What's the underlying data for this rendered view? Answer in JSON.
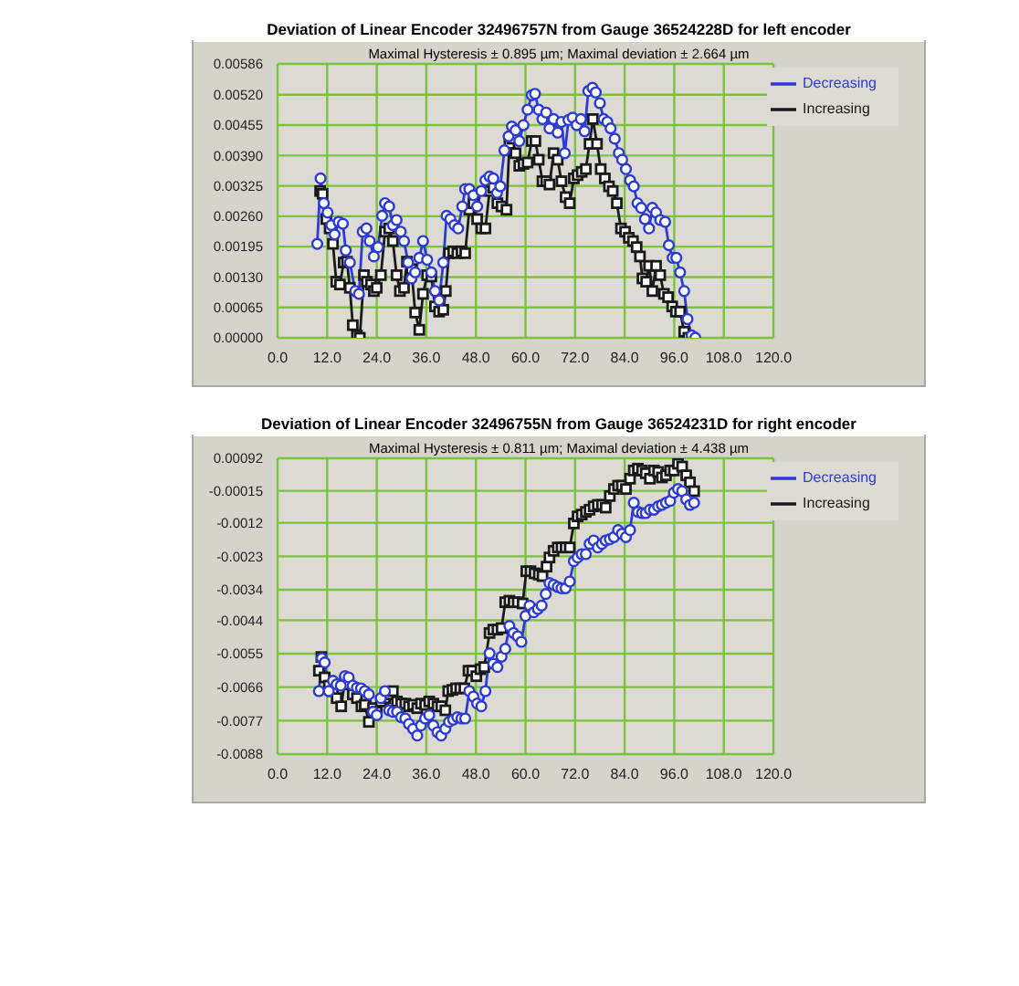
{
  "chart_data": [
    {
      "type": "line",
      "title": "Deviation of Linear Encoder 32496757N from Gauge 36524228D for left encoder",
      "subtitle": "Maximal Hysteresis ± 0.895 µm; Maximal deviation ± 2.664 µm",
      "xlim": [
        0,
        120
      ],
      "xticks": [
        {
          "value": 0,
          "label": "0.0"
        },
        {
          "value": 12,
          "label": "12.0"
        },
        {
          "value": 24,
          "label": "24.0"
        },
        {
          "value": 36,
          "label": "36.0"
        },
        {
          "value": 48,
          "label": "48.0"
        },
        {
          "value": 60,
          "label": "60.0"
        },
        {
          "value": 72,
          "label": "72.0"
        },
        {
          "value": 84,
          "label": "84.0"
        },
        {
          "value": 96,
          "label": "96.0"
        },
        {
          "value": 108,
          "label": "108.0"
        },
        {
          "value": 120,
          "label": "120.0"
        }
      ],
      "ylim": [
        0,
        0.00586
      ],
      "yticks": [
        {
          "value": 0,
          "label": "0.00000"
        },
        {
          "value": 0.00065,
          "label": "0.00065"
        },
        {
          "value": 0.0013,
          "label": "0.00130"
        },
        {
          "value": 0.00195,
          "label": "0.00195"
        },
        {
          "value": 0.0026,
          "label": "0.00260"
        },
        {
          "value": 0.00325,
          "label": "0.00325"
        },
        {
          "value": 0.0039,
          "label": "0.00390"
        },
        {
          "value": 0.00455,
          "label": "0.00455"
        },
        {
          "value": 0.0052,
          "label": "0.00520"
        },
        {
          "value": 0.00586,
          "label": "0.00586"
        }
      ],
      "grid": true,
      "legend": "top right",
      "series": [
        {
          "name": "Increasing",
          "color": "#1a1a1a",
          "marker": "square",
          "x": [
            10.3,
            10.9,
            11.8,
            12.6,
            13.4,
            14.2,
            15.1,
            16.0,
            16.8,
            17.5,
            18.2,
            19.2,
            19.9,
            20.9,
            21.6,
            22.6,
            23.3,
            24.0,
            25.0,
            26.0,
            27.0,
            27.9,
            28.8,
            29.6,
            30.6,
            31.3,
            32.4,
            33.3,
            34.3,
            35.2,
            36.2,
            37.2,
            38.1,
            39.1,
            40.1,
            40.7,
            41.5,
            42.5,
            43.5,
            44.5,
            45.4,
            46.4,
            47.4,
            48.3,
            49.3,
            50.3,
            51.3,
            52.2,
            53.2,
            54.2,
            55.4,
            56.1,
            56.8,
            57.6,
            58.5,
            59.5,
            60.5,
            61.5,
            62.4,
            63.2,
            64.1,
            65.0,
            65.8,
            66.8,
            67.8,
            68.7,
            69.7,
            70.7,
            71.7,
            72.6,
            73.6,
            74.6,
            75.5,
            76.3,
            77.3,
            78.2,
            79.2,
            80.2,
            81.1,
            82.1,
            83.1,
            84.1,
            85.0,
            86.0,
            86.9,
            87.7,
            88.3,
            89.2,
            89.9,
            90.7,
            91.6,
            92.6,
            93.5,
            94.5,
            95.5,
            96.4,
            97.4,
            98.4,
            99.4,
            100.2
          ],
          "values": [
            0.00314,
            0.00308,
            0.00254,
            0.00234,
            0.00201,
            0.0012,
            0.00114,
            0.00161,
            0.00163,
            0.00107,
            0.00027,
            5e-05,
            0.0,
            0.00134,
            0.0012,
            0.00114,
            0.001,
            0.00107,
            0.00134,
            0.00227,
            0.00234,
            0.00207,
            0.00134,
            0.001,
            0.00107,
            0.00163,
            0.00147,
            0.00054,
            0.00017,
            0.00094,
            0.00134,
            0.00131,
            0.00067,
            0.00056,
            0.0006,
            0.001,
            0.00181,
            0.00185,
            0.00181,
            0.00185,
            0.00181,
            0.00274,
            0.00288,
            0.00254,
            0.00234,
            0.00234,
            0.00314,
            0.00321,
            0.00288,
            0.00281,
            0.00274,
            0.00415,
            0.00426,
            0.00395,
            0.00368,
            0.00372,
            0.00375,
            0.00421,
            0.00421,
            0.00381,
            0.00335,
            0.00335,
            0.00328,
            0.00395,
            0.00381,
            0.00335,
            0.00301,
            0.00288,
            0.00341,
            0.00348,
            0.00355,
            0.00361,
            0.00415,
            0.00468,
            0.00415,
            0.00361,
            0.00341,
            0.00324,
            0.00314,
            0.00288,
            0.00234,
            0.00227,
            0.00214,
            0.00207,
            0.00194,
            0.00174,
            0.00127,
            0.0012,
            0.00154,
            0.001,
            0.00154,
            0.00134,
            0.00094,
            0.00087,
            0.00067,
            0.00056,
            0.00056,
            0.00013,
            0.0,
            0.0
          ]
        },
        {
          "name": "Decreasing",
          "color": "#2c3ad6",
          "marker": "circle",
          "x": [
            9.6,
            10.4,
            11.2,
            12.1,
            13.0,
            13.8,
            14.8,
            15.8,
            16.5,
            17.5,
            18.8,
            19.7,
            20.6,
            21.5,
            22.3,
            23.3,
            24.3,
            25.3,
            26.0,
            27.0,
            27.9,
            28.8,
            29.8,
            30.6,
            31.6,
            32.4,
            33.3,
            34.3,
            35.2,
            36.2,
            37.2,
            38.1,
            39.1,
            40.1,
            40.9,
            41.8,
            42.8,
            43.7,
            44.7,
            45.4,
            46.4,
            47.4,
            48.3,
            49.3,
            50.3,
            51.3,
            52.2,
            53.1,
            53.9,
            54.9,
            55.9,
            56.7,
            57.6,
            58.5,
            59.5,
            60.5,
            61.5,
            62.3,
            63.2,
            64.1,
            65.0,
            65.8,
            66.8,
            67.8,
            68.7,
            69.5,
            70.4,
            71.4,
            72.4,
            73.4,
            74.3,
            75.2,
            76.2,
            77.0,
            78.0,
            78.9,
            79.8,
            80.6,
            81.6,
            82.6,
            83.4,
            84.3,
            85.3,
            86.2,
            87.1,
            88.0,
            88.9,
            89.9,
            90.7,
            91.6,
            92.6,
            93.8,
            94.7,
            95.6,
            96.5,
            97.4,
            98.4,
            99.2,
            100.2,
            101.1
          ],
          "values": [
            0.00201,
            0.00341,
            0.00288,
            0.00268,
            0.00241,
            0.00221,
            0.00248,
            0.00244,
            0.00187,
            0.00161,
            0.001,
            0.00094,
            0.00227,
            0.00234,
            0.00207,
            0.00174,
            0.00194,
            0.00261,
            0.00288,
            0.00281,
            0.00241,
            0.00252,
            0.00227,
            0.00207,
            0.00161,
            0.00127,
            0.0014,
            0.00171,
            0.00207,
            0.00167,
            0.0014,
            0.001,
            0.0008,
            0.00161,
            0.00261,
            0.00254,
            0.00241,
            0.00234,
            0.00281,
            0.00318,
            0.00318,
            0.00305,
            0.00281,
            0.00314,
            0.00337,
            0.00345,
            0.00341,
            0.0031,
            0.00324,
            0.00401,
            0.00431,
            0.00452,
            0.00444,
            0.00421,
            0.00455,
            0.00488,
            0.00519,
            0.00522,
            0.00488,
            0.00468,
            0.00482,
            0.00448,
            0.00468,
            0.00439,
            0.00462,
            0.00395,
            0.00466,
            0.00471,
            0.00455,
            0.00468,
            0.00442,
            0.00528,
            0.00535,
            0.00525,
            0.00502,
            0.00468,
            0.00462,
            0.00448,
            0.00426,
            0.00395,
            0.00381,
            0.00361,
            0.00337,
            0.00324,
            0.00288,
            0.00278,
            0.00254,
            0.00234,
            0.00278,
            0.00268,
            0.00252,
            0.00248,
            0.00198,
            0.00171,
            0.00171,
            0.0014,
            0.001,
            0.0004,
            5e-05,
            0.0
          ]
        }
      ]
    },
    {
      "type": "line",
      "title": "Deviation of Linear Encoder 32496755N from Gauge 36524231D for right encoder",
      "subtitle": "Maximal Hysteresis ± 0.811 µm; Maximal deviation ± 4.438 µm",
      "xlim": [
        0,
        120
      ],
      "xticks": [
        {
          "value": 0,
          "label": "0.0"
        },
        {
          "value": 12,
          "label": "12.0"
        },
        {
          "value": 24,
          "label": "24.0"
        },
        {
          "value": 36,
          "label": "36.0"
        },
        {
          "value": 48,
          "label": "48.0"
        },
        {
          "value": 60,
          "label": "60.0"
        },
        {
          "value": 72,
          "label": "72.0"
        },
        {
          "value": 84,
          "label": "84.0"
        },
        {
          "value": 96,
          "label": "96.0"
        },
        {
          "value": 108,
          "label": "108.0"
        },
        {
          "value": 120,
          "label": "120.0"
        }
      ],
      "ylim": [
        -0.0088,
        0.00092
      ],
      "yticks": [
        {
          "value": -0.0088,
          "label": "-0.0088"
        },
        {
          "value": -0.0077,
          "label": "-0.0077"
        },
        {
          "value": -0.0066,
          "label": "-0.0066"
        },
        {
          "value": -0.0055,
          "label": "-0.0055"
        },
        {
          "value": -0.0044,
          "label": "-0.0044"
        },
        {
          "value": -0.0034,
          "label": "-0.0034"
        },
        {
          "value": -0.0023,
          "label": "-0.0023"
        },
        {
          "value": -0.0012,
          "label": "-0.0012"
        },
        {
          "value": -0.00015,
          "label": "-0.00015"
        },
        {
          "value": 0.00092,
          "label": "0.00092"
        }
      ],
      "grid": true,
      "legend": "top right",
      "series": [
        {
          "name": "Increasing",
          "color": "#1a1a1a",
          "marker": "square",
          "x": [
            10.0,
            10.6,
            11.4,
            12.4,
            13.4,
            14.3,
            15.4,
            16.3,
            17.2,
            18.2,
            19.2,
            20.3,
            21.1,
            22.1,
            23.1,
            24.0,
            25.0,
            26.0,
            27.0,
            27.9,
            28.9,
            29.9,
            30.9,
            31.8,
            32.8,
            33.8,
            34.7,
            35.7,
            36.7,
            37.7,
            38.7,
            39.6,
            40.6,
            41.3,
            42.3,
            43.2,
            44.2,
            45.2,
            46.2,
            47.1,
            48.1,
            49.1,
            50.0,
            51.3,
            52.2,
            53.2,
            54.2,
            55.1,
            56.1,
            57.1,
            58.1,
            59.3,
            60.2,
            61.2,
            62.2,
            63.2,
            64.1,
            65.1,
            65.8,
            66.8,
            67.8,
            68.7,
            69.7,
            70.7,
            71.7,
            72.6,
            73.6,
            74.6,
            75.5,
            76.5,
            77.5,
            78.5,
            79.4,
            80.4,
            81.4,
            82.4,
            83.3,
            84.3,
            85.3,
            86.2,
            87.2,
            88.2,
            89.1,
            90.1,
            91.1,
            92.1,
            93.0,
            94.0,
            95.0,
            95.9,
            96.9,
            97.9,
            98.9,
            99.8,
            100.8
          ],
          "values": [
            -0.00606,
            -0.00561,
            -0.00628,
            -0.00655,
            -0.00673,
            -0.00696,
            -0.00723,
            -0.00639,
            -0.00651,
            -0.00684,
            -0.00696,
            -0.00723,
            -0.00718,
            -0.00774,
            -0.00729,
            -0.00741,
            -0.00707,
            -0.00696,
            -0.00684,
            -0.00673,
            -0.00707,
            -0.00714,
            -0.00714,
            -0.00723,
            -0.00718,
            -0.00729,
            -0.00714,
            -0.00718,
            -0.00707,
            -0.00714,
            -0.00723,
            -0.00723,
            -0.00736,
            -0.00673,
            -0.00669,
            -0.00664,
            -0.00664,
            -0.00664,
            -0.00606,
            -0.00606,
            -0.00624,
            -0.00601,
            -0.00594,
            -0.00482,
            -0.00471,
            -0.00471,
            -0.00466,
            -0.00381,
            -0.00376,
            -0.00381,
            -0.00381,
            -0.00385,
            -0.00279,
            -0.00279,
            -0.00286,
            -0.0029,
            -0.00295,
            -0.00264,
            -0.00234,
            -0.00212,
            -0.00201,
            -0.00201,
            -0.00201,
            -0.00201,
            -0.00122,
            -0.00099,
            -0.00093,
            -0.00084,
            -0.00077,
            -0.00066,
            -0.00061,
            -0.00061,
            -0.0007,
            -0.00032,
            -9e-05,
            2e-05,
            2e-05,
            -9e-05,
            0.00025,
            0.00052,
            0.00058,
            0.00052,
            0.00043,
            0.00025,
            0.00052,
            0.00047,
            0.00029,
            0.00036,
            0.00052,
            0.00052,
            0.00074,
            0.00065,
            0.00036,
            0.00013,
            -0.00016
          ]
        },
        {
          "name": "Decreasing",
          "color": "#2c3ad6",
          "marker": "circle",
          "x": [
            10.0,
            10.7,
            11.4,
            12.4,
            13.4,
            14.3,
            15.3,
            16.3,
            17.2,
            18.2,
            19.2,
            20.2,
            21.1,
            22.1,
            23.1,
            24.0,
            25.0,
            26.0,
            27.0,
            27.9,
            28.9,
            29.9,
            30.9,
            31.8,
            32.8,
            33.8,
            34.7,
            35.7,
            36.7,
            37.7,
            38.7,
            39.6,
            40.6,
            41.5,
            42.5,
            43.5,
            44.5,
            45.4,
            46.4,
            47.4,
            48.3,
            49.3,
            50.3,
            51.3,
            52.2,
            53.2,
            54.2,
            55.1,
            56.1,
            57.1,
            58.1,
            59.0,
            60.0,
            61.0,
            62.0,
            63.0,
            63.9,
            64.9,
            65.8,
            66.8,
            67.8,
            68.7,
            69.7,
            70.7,
            71.7,
            72.6,
            73.6,
            74.6,
            75.5,
            76.5,
            77.5,
            78.5,
            79.4,
            80.4,
            81.4,
            82.4,
            83.3,
            84.3,
            85.3,
            86.2,
            87.2,
            88.2,
            89.1,
            90.1,
            91.1,
            92.1,
            93.0,
            94.0,
            95.0,
            95.9,
            96.9,
            97.9,
            98.9,
            99.8,
            100.8
          ],
          "values": [
            -0.00673,
            -0.00565,
            -0.00579,
            -0.00673,
            -0.00639,
            -0.00651,
            -0.00655,
            -0.00624,
            -0.00628,
            -0.00655,
            -0.00662,
            -0.00664,
            -0.00673,
            -0.00684,
            -0.00741,
            -0.00752,
            -0.00696,
            -0.00673,
            -0.00736,
            -0.00741,
            -0.00741,
            -0.00759,
            -0.00763,
            -0.00781,
            -0.00797,
            -0.00819,
            -0.00786,
            -0.00763,
            -0.00752,
            -0.00786,
            -0.00808,
            -0.00819,
            -0.00797,
            -0.00774,
            -0.00767,
            -0.00759,
            -0.00763,
            -0.00763,
            -0.00673,
            -0.00691,
            -0.00714,
            -0.00723,
            -0.00673,
            -0.00549,
            -0.00583,
            -0.00594,
            -0.0056,
            -0.00534,
            -0.00459,
            -0.00482,
            -0.00493,
            -0.00511,
            -0.00426,
            -0.00392,
            -0.00414,
            -0.00403,
            -0.00392,
            -0.00354,
            -0.00318,
            -0.00324,
            -0.00331,
            -0.00335,
            -0.00335,
            -0.00313,
            -0.00246,
            -0.00234,
            -0.00223,
            -0.00223,
            -0.00189,
            -0.00178,
            -0.00201,
            -0.00189,
            -0.00178,
            -0.00174,
            -0.00167,
            -0.00144,
            -0.00156,
            -0.00167,
            -0.00144,
            -0.00054,
            -0.00084,
            -0.00088,
            -0.00088,
            -0.00077,
            -0.00077,
            -0.00066,
            -0.00061,
            -0.00054,
            -0.00048,
            -0.00021,
            -9e-05,
            -0.00016,
            -0.00043,
            -0.00061,
            -0.00054
          ]
        }
      ]
    }
  ]
}
